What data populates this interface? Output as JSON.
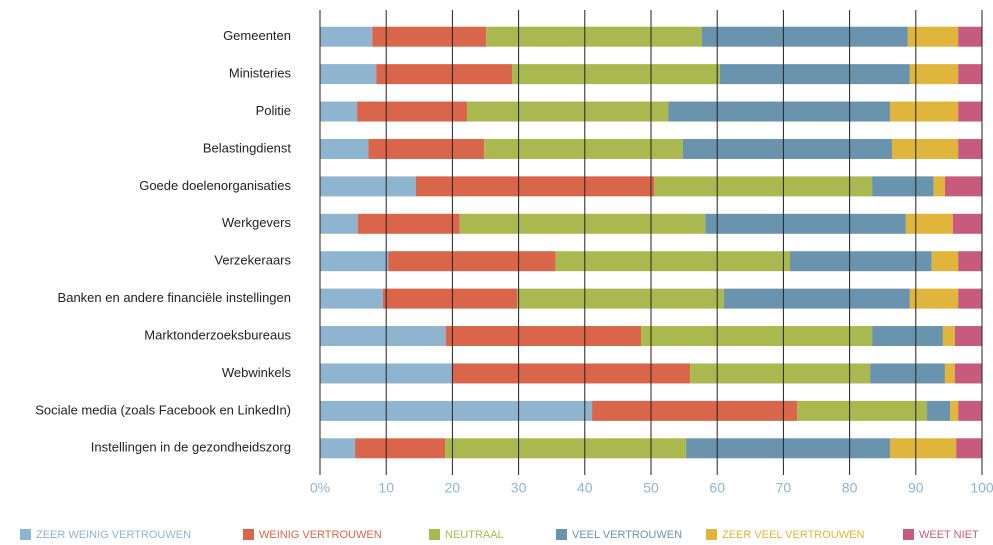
{
  "chart_data": {
    "type": "stacked_barh",
    "categories": [
      "Gemeenten",
      "Ministeries",
      "Politie",
      "Belastingdienst",
      "Goede doelenorganisaties",
      "Werkgevers",
      "Verzekeraars",
      "Banken en andere financiële instellingen",
      "Marktonderzoeksbureaus",
      "Webwinkels",
      "Sociale media (zoals Facebook en LinkedIn)",
      "Instellingen in de gezondheidszorg"
    ],
    "series": [
      {
        "name": "ZEER WEINIG VERTROUWEN",
        "color": "#8fb4d0",
        "values": [
          7.9,
          8.5,
          5.6,
          7.3,
          14.5,
          5.7,
          10.3,
          9.5,
          19.0,
          19.9,
          41.1,
          5.3
        ]
      },
      {
        "name": "WEINIG VERTROUWEN",
        "color": "#d9654a",
        "values": [
          17.2,
          20.5,
          16.6,
          17.5,
          36.0,
          15.4,
          25.3,
          20.3,
          29.5,
          36.0,
          31.0,
          13.6
        ]
      },
      {
        "name": "NEUTRAAL",
        "color": "#a9b94f",
        "values": [
          32.6,
          31.4,
          30.4,
          30.0,
          32.9,
          37.1,
          35.4,
          31.2,
          34.9,
          27.2,
          19.6,
          36.4
        ]
      },
      {
        "name": "VEEL VERTROUWEN",
        "color": "#6a93ad",
        "values": [
          31.1,
          28.7,
          33.5,
          31.6,
          9.3,
          30.3,
          21.4,
          28.1,
          10.7,
          11.3,
          3.5,
          30.8
        ]
      },
      {
        "name": "ZEER VEEL VERTROUWEN",
        "color": "#dfb53b",
        "values": [
          7.6,
          7.3,
          10.3,
          10.0,
          1.7,
          7.1,
          4.0,
          7.3,
          1.8,
          1.5,
          1.2,
          10.0
        ]
      },
      {
        "name": "WEET NIET",
        "color": "#c75b7e",
        "values": [
          3.6,
          3.6,
          3.6,
          3.6,
          5.6,
          4.4,
          3.6,
          3.6,
          4.1,
          4.1,
          3.6,
          3.9
        ]
      }
    ],
    "xlim": [
      0,
      100
    ],
    "xticks": [
      {
        "value": 0,
        "label": "0%"
      },
      10,
      20,
      30,
      40,
      50,
      60,
      70,
      80,
      90,
      100
    ],
    "grid": true,
    "legend_position": "bottom"
  }
}
